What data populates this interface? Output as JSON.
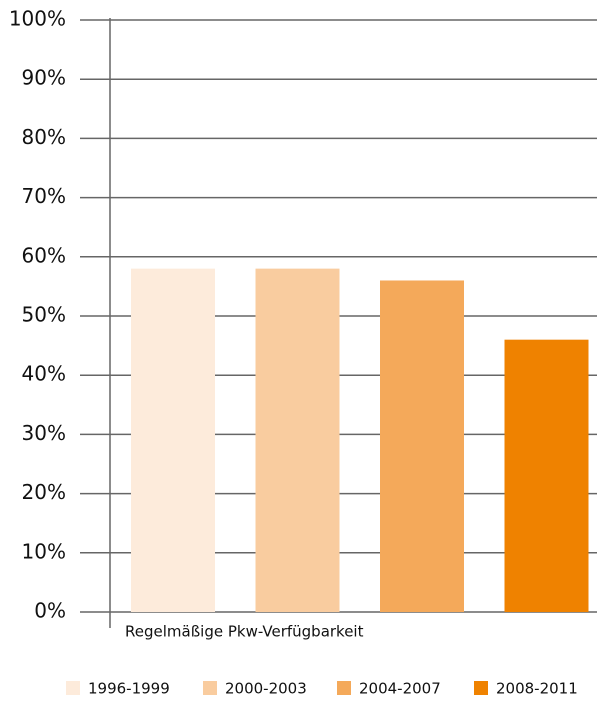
{
  "chart_data": {
    "type": "bar",
    "categories": [
      "Regelmäßige Pkw-Verfügbarkeit"
    ],
    "series": [
      {
        "name": "1996-1999",
        "color": "#fdebdb",
        "values": [
          58
        ]
      },
      {
        "name": "2000-2003",
        "color": "#f9cc9f",
        "values": [
          58
        ]
      },
      {
        "name": "2004-2007",
        "color": "#f4a95a",
        "values": [
          56
        ]
      },
      {
        "name": "2008-2011",
        "color": "#ef8200",
        "values": [
          46
        ]
      }
    ],
    "ylim": [
      0,
      100
    ],
    "yticks": [
      {
        "value": 0,
        "label": "0%"
      },
      {
        "value": 10,
        "label": "10%"
      },
      {
        "value": 20,
        "label": "20%"
      },
      {
        "value": 30,
        "label": "30%"
      },
      {
        "value": 40,
        "label": "40%"
      },
      {
        "value": 50,
        "label": "50%"
      },
      {
        "value": 60,
        "label": "60%"
      },
      {
        "value": 70,
        "label": "70%"
      },
      {
        "value": 80,
        "label": "80%"
      },
      {
        "value": 90,
        "label": "90%"
      },
      {
        "value": 100,
        "label": "100%"
      }
    ],
    "grid": true,
    "legend": "bottom"
  }
}
